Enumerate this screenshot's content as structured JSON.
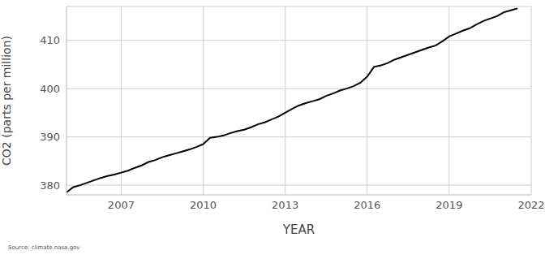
{
  "chart_data": {
    "type": "line",
    "x_label": "YEAR",
    "y_label": "CO2 (parts per million)",
    "annotation": "Source: climate.nasa.gov",
    "x": [
      2005.0,
      2005.25,
      2005.5,
      2005.75,
      2006.0,
      2006.25,
      2006.5,
      2006.75,
      2007.0,
      2007.25,
      2007.5,
      2007.75,
      2008.0,
      2008.25,
      2008.5,
      2008.75,
      2009.0,
      2009.25,
      2009.5,
      2009.75,
      2010.0,
      2010.25,
      2010.5,
      2010.75,
      2011.0,
      2011.25,
      2011.5,
      2011.75,
      2012.0,
      2012.25,
      2012.5,
      2012.75,
      2013.0,
      2013.25,
      2013.5,
      2013.75,
      2014.0,
      2014.25,
      2014.5,
      2014.75,
      2015.0,
      2015.25,
      2015.5,
      2015.75,
      2016.0,
      2016.25,
      2016.5,
      2016.75,
      2017.0,
      2017.25,
      2017.5,
      2017.75,
      2018.0,
      2018.25,
      2018.5,
      2018.75,
      2019.0,
      2019.25,
      2019.5,
      2019.75,
      2020.0,
      2020.25,
      2020.5,
      2020.75,
      2021.0,
      2021.25,
      2021.5
    ],
    "values": [
      378.5,
      379.6,
      380.0,
      380.5,
      381.0,
      381.5,
      381.9,
      382.2,
      382.6,
      383.0,
      383.6,
      384.1,
      384.8,
      385.2,
      385.8,
      386.2,
      386.6,
      387.0,
      387.4,
      387.9,
      388.5,
      389.8,
      390.0,
      390.3,
      390.8,
      391.2,
      391.5,
      392.0,
      392.6,
      393.0,
      393.6,
      394.2,
      395.0,
      395.8,
      396.5,
      397.0,
      397.4,
      397.8,
      398.5,
      399.0,
      399.6,
      400.0,
      400.5,
      401.2,
      402.5,
      404.5,
      404.8,
      405.3,
      406.0,
      406.5,
      407.0,
      407.5,
      408.0,
      408.5,
      408.9,
      409.8,
      410.8,
      411.4,
      412.0,
      412.5,
      413.3,
      414.0,
      414.5,
      415.0,
      415.8,
      416.2,
      416.6
    ],
    "color": "#000000",
    "line_style": "solid",
    "xlim": [
      2005,
      2022
    ],
    "xticks": [
      2007,
      2010,
      2013,
      2016,
      2019,
      2022
    ],
    "ylim": [
      378,
      417
    ],
    "yticks": [
      380,
      390,
      400,
      410
    ],
    "grid": true
  }
}
